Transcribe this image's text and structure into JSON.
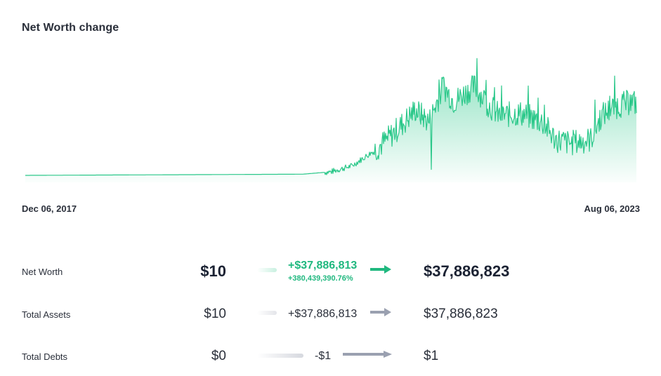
{
  "title": "Net Worth change",
  "dates": {
    "start": "Dec 06, 2017",
    "end": "Aug 06, 2023"
  },
  "colors": {
    "positive": "#20b87f",
    "neutral_arrow": "#9aa0b0",
    "line": "#2bc88a"
  },
  "rows": [
    {
      "label": "Net Worth",
      "from": "$10",
      "change": "+$37,886,813",
      "change_pct": "+380,439,390.76%",
      "to": "$37,886,823",
      "arrow": "arrow-right-green-icon"
    },
    {
      "label": "Total Assets",
      "from": "$10",
      "change": "+$37,886,813",
      "to": "$37,886,823",
      "arrow": "arrow-right-gray-icon"
    },
    {
      "label": "Total Debts",
      "from": "$0",
      "change": "-$1",
      "to": "$1",
      "arrow": "arrow-right-gray-icon"
    }
  ]
}
